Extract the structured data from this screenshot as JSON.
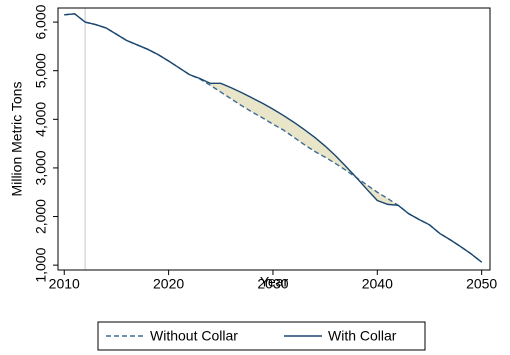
{
  "chart_data": {
    "type": "line",
    "x_label": "Year",
    "y_label": "Million Metric Tons",
    "x": [
      2010,
      2011,
      2012,
      2013,
      2014,
      2015,
      2016,
      2017,
      2018,
      2019,
      2020,
      2021,
      2022,
      2023,
      2024,
      2025,
      2026,
      2027,
      2028,
      2029,
      2030,
      2031,
      2032,
      2033,
      2034,
      2035,
      2036,
      2037,
      2038,
      2039,
      2040,
      2041,
      2042,
      2043,
      2044,
      2045,
      2046,
      2047,
      2048,
      2049,
      2050
    ],
    "series": [
      {
        "name": "Without Collar",
        "color": "#3d6a96",
        "dash": true,
        "values": [
          6150,
          6170,
          6000,
          5950,
          5880,
          5750,
          5620,
          5530,
          5440,
          5330,
          5200,
          5060,
          4920,
          4830,
          4700,
          4560,
          4420,
          4280,
          4150,
          4030,
          3900,
          3780,
          3630,
          3480,
          3340,
          3220,
          3090,
          2950,
          2800,
          2650,
          2500,
          2370,
          2230,
          2060,
          1940,
          1830,
          1650,
          1520,
          1380,
          1230,
          1060
        ]
      },
      {
        "name": "With Collar",
        "color": "#1a476f",
        "dash": false,
        "values": [
          6150,
          6170,
          6000,
          5950,
          5880,
          5750,
          5620,
          5530,
          5440,
          5330,
          5200,
          5060,
          4920,
          4840,
          4740,
          4740,
          4650,
          4550,
          4440,
          4330,
          4210,
          4080,
          3940,
          3790,
          3630,
          3450,
          3250,
          3030,
          2800,
          2560,
          2330,
          2250,
          2230,
          2060,
          1940,
          1830,
          1650,
          1520,
          1380,
          1230,
          1060
        ]
      }
    ],
    "fill_between": "#e9e5c8",
    "vline": 2012,
    "xlim": [
      2009.4,
      2050.8
    ],
    "xticks": [
      2010,
      2020,
      2030,
      2040,
      2050
    ],
    "ylim": [
      900,
      6290
    ],
    "yticks": [
      {
        "value": 1000,
        "label": "1,000"
      },
      {
        "value": 2000,
        "label": "2,000"
      },
      {
        "value": 3000,
        "label": "3,000"
      },
      {
        "value": 4000,
        "label": "4,000"
      },
      {
        "value": 5000,
        "label": "5,000"
      },
      {
        "value": 6000,
        "label": "6,000"
      }
    ],
    "legend": "bottom"
  }
}
